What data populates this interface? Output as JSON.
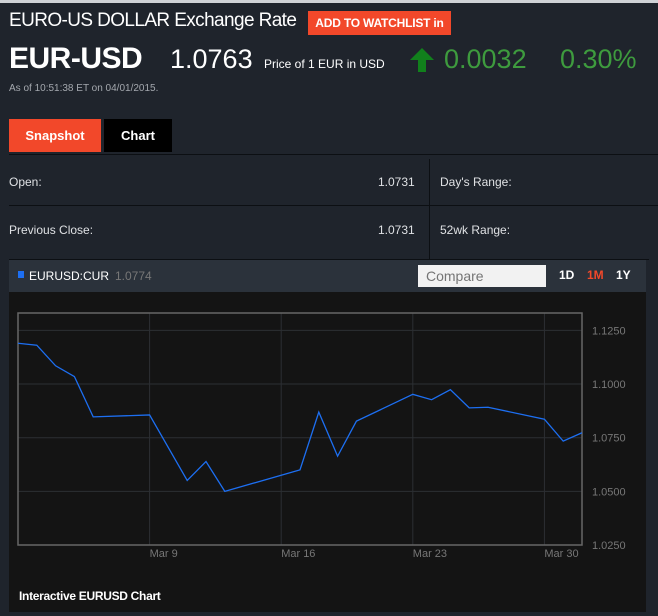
{
  "header": {
    "title": "EURO-US DOLLAR Exchange Rate",
    "watchlist_label": "ADD TO WATCHLIST in",
    "ticker": "EUR-USD",
    "price": "1.0763",
    "price_label": "Price of 1 EUR in USD",
    "change": "0.0032",
    "change_pct": "0.30%",
    "direction_icon": "arrow-up-icon",
    "as_of": "As of 10:51:38 ET on 04/01/2015."
  },
  "colors": {
    "accent": "#f2482a",
    "positive": "#3e9b3e",
    "series": "#1d6ff2"
  },
  "tabs": [
    {
      "label": "Snapshot",
      "active": true
    },
    {
      "label": "Chart",
      "active": false
    }
  ],
  "stats": {
    "open_label": "Open:",
    "open": "1.0731",
    "prev_label": "Previous Close:",
    "prev": "1.0731",
    "days_range_label": "Day's Range:",
    "wk52_label": "52wk Range:"
  },
  "chart_panel": {
    "symbol": "EURUSD:CUR",
    "last": "1.0774",
    "compare_placeholder": "Compare",
    "ranges": [
      {
        "label": "1D",
        "active": false
      },
      {
        "label": "1M",
        "active": true
      },
      {
        "label": "1Y",
        "active": false
      }
    ],
    "footer": "Interactive EURUSD Chart"
  },
  "chart_data": {
    "type": "line",
    "series": [
      {
        "x": [
          "2015-03-02",
          "2015-03-03",
          "2015-03-04",
          "2015-03-05",
          "2015-03-06",
          "2015-03-09",
          "2015-03-11",
          "2015-03-12",
          "2015-03-13",
          "2015-03-17",
          "2015-03-18",
          "2015-03-19",
          "2015-03-20",
          "2015-03-23",
          "2015-03-24",
          "2015-03-25",
          "2015-03-26",
          "2015-03-27",
          "2015-03-30",
          "2015-03-31",
          "2015-04-01"
        ],
        "values": [
          1.119,
          1.1181,
          1.1085,
          1.1035,
          1.0847,
          1.0856,
          1.0551,
          1.0639,
          1.05,
          1.06,
          1.0869,
          1.0664,
          1.0827,
          1.0952,
          1.0927,
          1.0974,
          1.0889,
          1.0892,
          1.0836,
          1.0734,
          1.0773
        ]
      }
    ],
    "xticks": [
      {
        "date": "2015-03-09",
        "label": "Mar 9"
      },
      {
        "date": "2015-03-16",
        "label": "Mar 16"
      },
      {
        "date": "2015-03-23",
        "label": "Mar 23"
      },
      {
        "date": "2015-03-30",
        "label": "Mar 30"
      }
    ],
    "yticks": [
      "1.1250",
      "1.1000",
      "1.0750",
      "1.0500",
      "1.0250"
    ],
    "ylim": [
      1.025,
      1.1331
    ],
    "xlim": [
      "2015-03-02",
      "2015-04-01"
    ],
    "grid": true,
    "legend": "none"
  }
}
